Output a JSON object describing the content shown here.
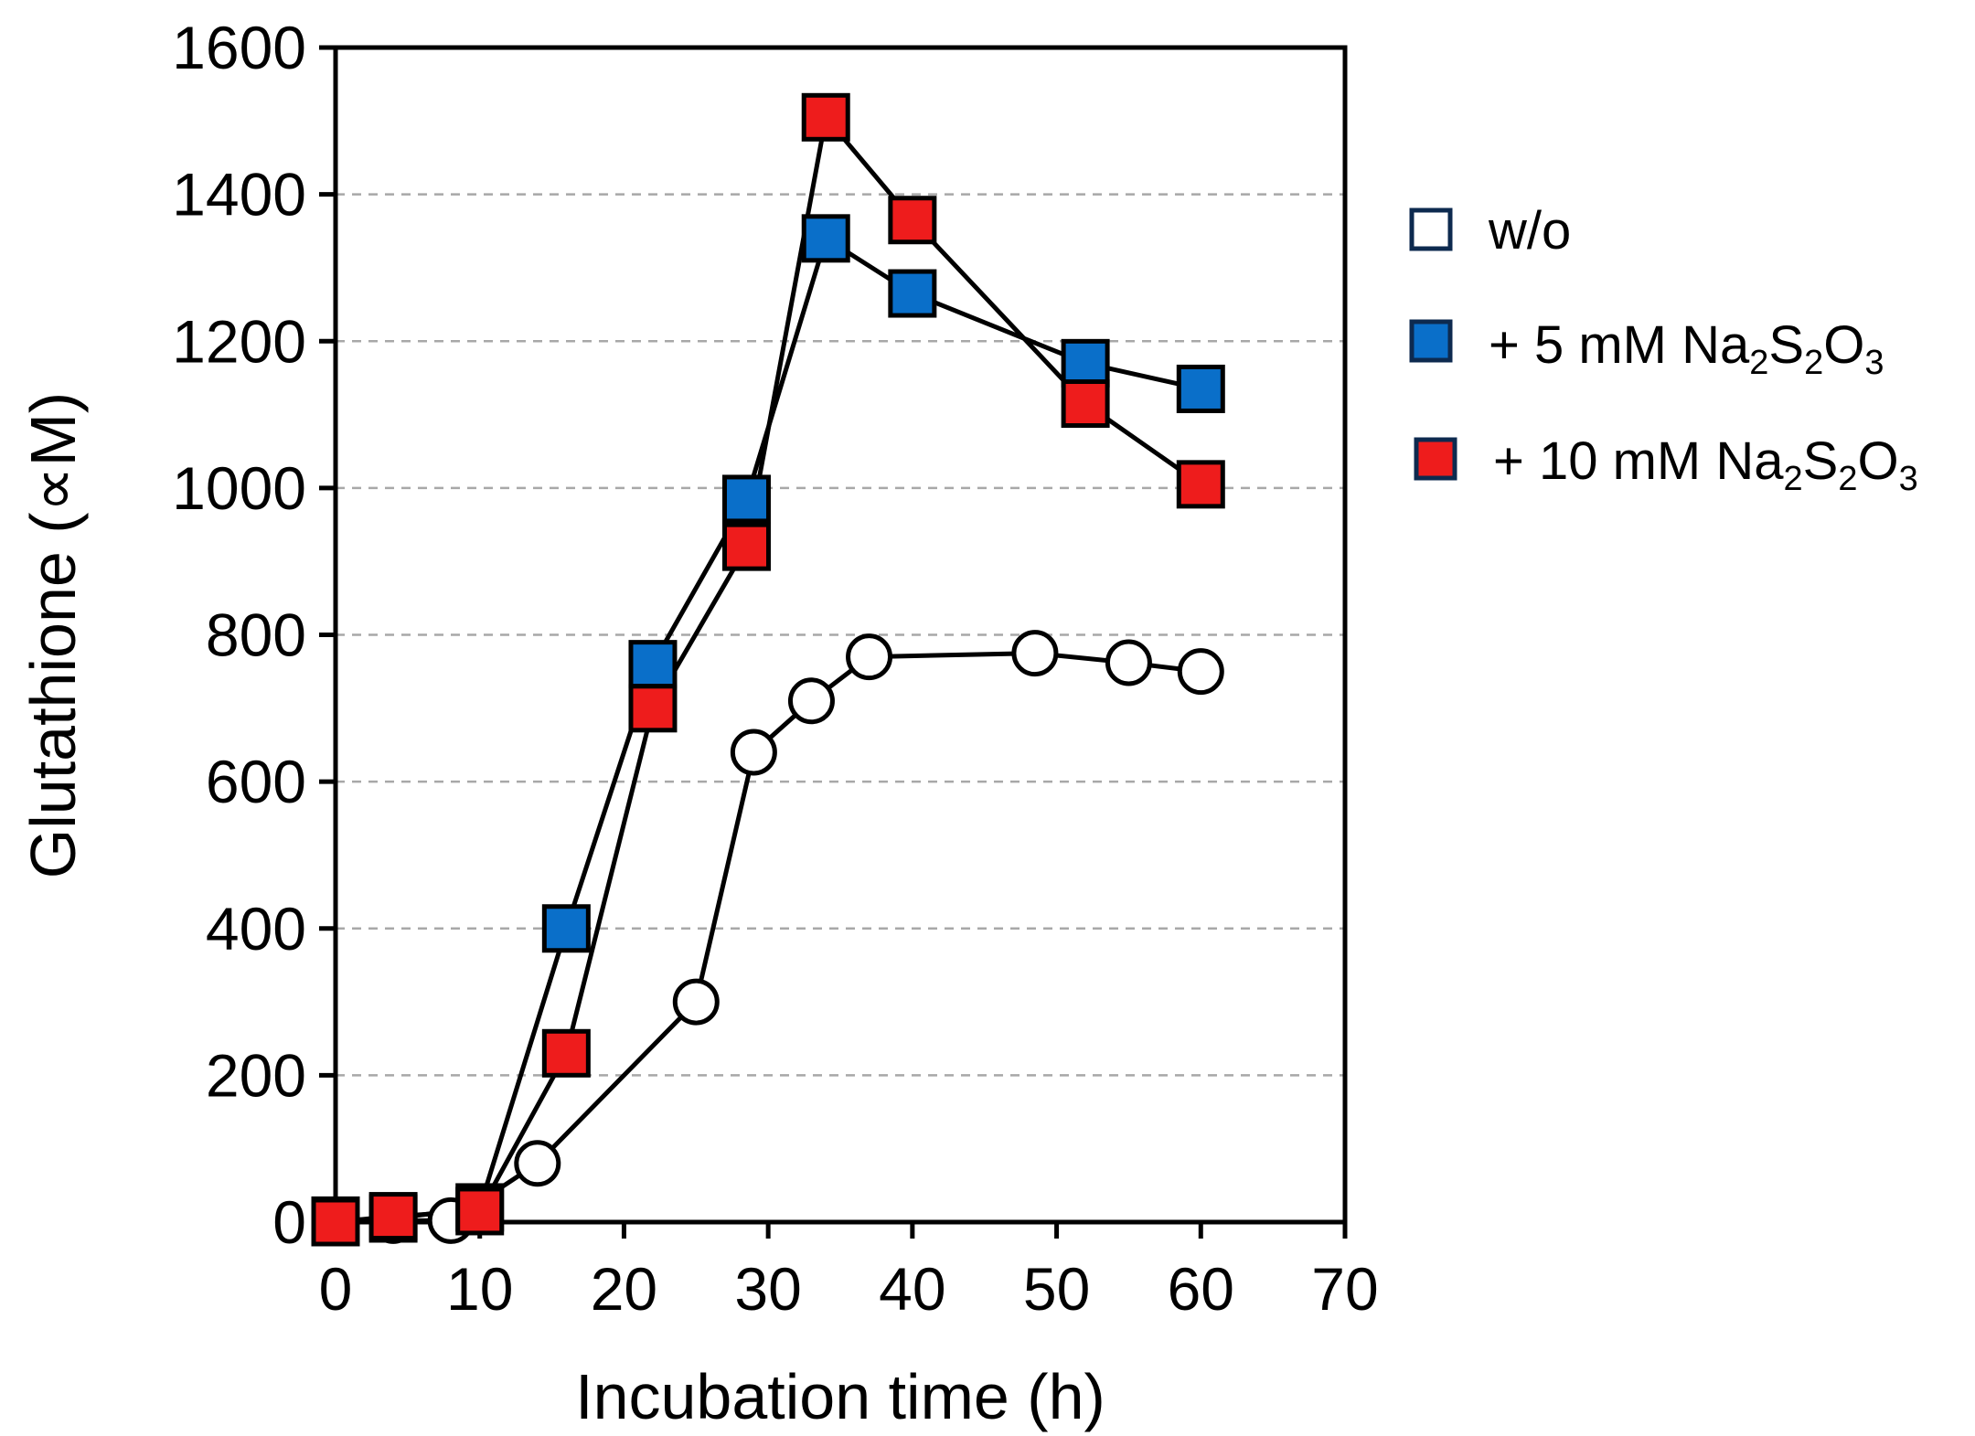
{
  "chart_data": {
    "type": "line",
    "xlabel": "Incubation time (h)",
    "ylabel": "Glutathione (∝M)",
    "xlim": [
      0,
      70
    ],
    "ylim": [
      0,
      1600
    ],
    "xticks": [
      "0",
      "10",
      "20",
      "30",
      "40",
      "50",
      "60",
      "70"
    ],
    "yticks": [
      "0",
      "200",
      "400",
      "600",
      "800",
      "1000",
      "1200",
      "1400",
      "1600"
    ],
    "grid": "horizontal dashed",
    "legend_position": "right",
    "series": [
      {
        "name": "w/o",
        "marker": "circle",
        "color": "#ffffff",
        "x": [
          0,
          4,
          8,
          14,
          25,
          29,
          33,
          37,
          48.5,
          55,
          60
        ],
        "y": [
          2,
          2,
          2,
          80,
          300,
          640,
          710,
          770,
          775,
          762,
          750
        ]
      },
      {
        "name": "+ 5 mM Na2S2O3",
        "name_parts": {
          "pre": "+ 5 mM Na",
          "s1": "2",
          "mid": "S",
          "s2": "2",
          "mid2": "O",
          "s3": "3"
        },
        "marker": "square",
        "color": "#0a6fc9",
        "x": [
          0,
          4,
          10,
          16,
          22,
          28.5,
          34,
          40,
          52,
          60
        ],
        "y": [
          2,
          5,
          20,
          400,
          760,
          985,
          1340,
          1265,
          1170,
          1135
        ]
      },
      {
        "name": "+ 10 mM Na2S2O3",
        "name_parts": {
          "pre": "+ 10 mM Na",
          "s1": "2",
          "mid": "S",
          "s2": "2",
          "mid2": "O",
          "s3": "3"
        },
        "marker": "square",
        "color": "#ee1c1c",
        "x": [
          0,
          4,
          10,
          16,
          22,
          28.5,
          34,
          40,
          52,
          60
        ],
        "y": [
          0,
          8,
          15,
          230,
          700,
          920,
          1505,
          1365,
          1115,
          1005
        ]
      }
    ]
  }
}
